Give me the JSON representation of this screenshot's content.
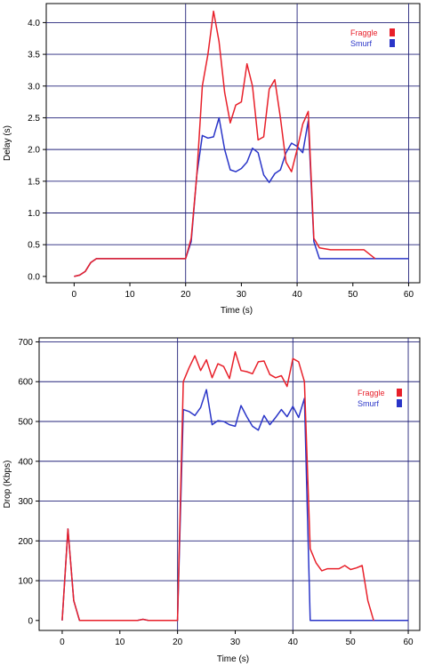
{
  "chart_data": [
    {
      "type": "line",
      "title": "",
      "xlabel": "Time (s)",
      "ylabel": "Delay (s)",
      "xlim": [
        -5,
        62
      ],
      "ylim": [
        -0.1,
        4.3
      ],
      "xticks": [
        0,
        10,
        20,
        30,
        40,
        50,
        60
      ],
      "yticks": [
        0.0,
        0.5,
        1.0,
        1.5,
        2.0,
        2.5,
        3.0,
        3.5,
        4.0
      ],
      "ytick_labels": [
        "0.0",
        "0.5",
        "1.0",
        "1.5",
        "2.0",
        "2.5",
        "3.0",
        "3.5",
        "4.0"
      ],
      "grid": true,
      "legend": "top-right",
      "series": [
        {
          "name": "Fraggle",
          "color": "#e8202a",
          "x": [
            0,
            1,
            2,
            3,
            4,
            10,
            15,
            20,
            21,
            22,
            23,
            24,
            25,
            26,
            27,
            28,
            29,
            30,
            31,
            32,
            33,
            34,
            35,
            36,
            37,
            38,
            39,
            40,
            41,
            42,
            43,
            44,
            46,
            52,
            54
          ],
          "y": [
            0.0,
            0.02,
            0.08,
            0.22,
            0.28,
            0.28,
            0.28,
            0.28,
            0.6,
            1.6,
            3.0,
            3.5,
            4.18,
            3.7,
            2.9,
            2.42,
            2.7,
            2.75,
            3.35,
            3.0,
            2.15,
            2.2,
            2.95,
            3.1,
            2.5,
            1.8,
            1.65,
            2.0,
            2.4,
            2.6,
            0.6,
            0.45,
            0.42,
            0.42,
            0.28
          ]
        },
        {
          "name": "Smurf",
          "color": "#2a35c8",
          "x": [
            0,
            1,
            2,
            3,
            4,
            10,
            15,
            20,
            21,
            22,
            23,
            24,
            25,
            26,
            27,
            28,
            29,
            30,
            31,
            32,
            33,
            34,
            35,
            36,
            37,
            38,
            39,
            40,
            41,
            42,
            43,
            44,
            46,
            52,
            54,
            60
          ],
          "y": [
            0.0,
            0.02,
            0.08,
            0.22,
            0.28,
            0.28,
            0.28,
            0.28,
            0.55,
            1.6,
            2.22,
            2.18,
            2.2,
            2.5,
            2.0,
            1.68,
            1.65,
            1.7,
            1.8,
            2.02,
            1.95,
            1.6,
            1.48,
            1.62,
            1.68,
            1.95,
            2.1,
            2.05,
            1.95,
            2.45,
            0.55,
            0.28,
            0.28,
            0.28,
            0.28,
            0.28
          ]
        }
      ]
    },
    {
      "type": "line",
      "title": "",
      "xlabel": "Time (s)",
      "ylabel": "Drop (Kbps)",
      "xlim": [
        -4,
        62
      ],
      "ylim": [
        -25,
        710
      ],
      "xticks": [
        0,
        10,
        20,
        30,
        40,
        50,
        60
      ],
      "yticks": [
        0,
        100,
        200,
        300,
        400,
        500,
        600,
        700
      ],
      "ytick_labels": [
        "0",
        "100",
        "200",
        "300",
        "400",
        "500",
        "600",
        "700"
      ],
      "grid": true,
      "legend": "right",
      "series": [
        {
          "name": "Fraggle",
          "color": "#e8202a",
          "x": [
            0,
            1,
            2,
            3,
            10,
            13,
            14,
            15,
            20,
            21,
            22,
            23,
            24,
            25,
            26,
            27,
            28,
            29,
            30,
            31,
            32,
            33,
            34,
            35,
            36,
            37,
            38,
            39,
            40,
            41,
            42,
            43,
            44,
            45,
            46,
            48,
            49,
            50,
            51,
            52,
            53,
            54
          ],
          "y": [
            0,
            230,
            50,
            0,
            0,
            0,
            3,
            0,
            0,
            600,
            635,
            665,
            628,
            655,
            610,
            645,
            638,
            608,
            675,
            628,
            625,
            620,
            650,
            652,
            618,
            610,
            615,
            588,
            658,
            650,
            600,
            180,
            145,
            125,
            130,
            130,
            138,
            128,
            132,
            138,
            50,
            0
          ]
        },
        {
          "name": "Smurf",
          "color": "#2a35c8",
          "x": [
            0,
            1,
            2,
            3,
            10,
            13,
            14,
            15,
            20,
            21,
            22,
            23,
            24,
            25,
            26,
            27,
            28,
            29,
            30,
            31,
            32,
            33,
            34,
            35,
            36,
            37,
            38,
            39,
            40,
            41,
            42,
            43,
            44,
            50,
            55,
            60
          ],
          "y": [
            0,
            230,
            50,
            0,
            0,
            0,
            3,
            0,
            0,
            530,
            525,
            515,
            535,
            580,
            492,
            502,
            500,
            492,
            488,
            540,
            512,
            488,
            478,
            515,
            492,
            510,
            530,
            512,
            538,
            510,
            558,
            0,
            0,
            0,
            0,
            0
          ]
        }
      ]
    }
  ]
}
